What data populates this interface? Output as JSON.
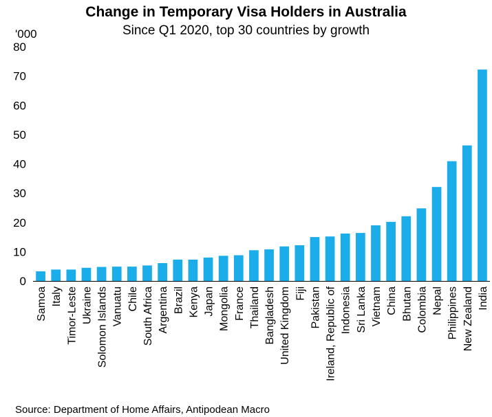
{
  "chart_data": {
    "type": "bar",
    "title": "Change in Temporary Visa Holders in Australia",
    "subtitle": "Since Q1 2020, top 30 countries by growth",
    "unit_label": "'000",
    "source": "Source: Department of Home Affairs, Antipodean Macro",
    "categories": [
      "Samoa",
      "Italy",
      "Timor-Leste",
      "Ukraine",
      "Solomon Islands",
      "Vanuatu",
      "Chile",
      "South Africa",
      "Argentina",
      "Brazil",
      "Kenya",
      "Japan",
      "Mongolia",
      "France",
      "Thailand",
      "Bangladesh",
      "United Kingdom",
      "Fiji",
      "Pakistan",
      "Ireland, Republic of",
      "Indonesia",
      "Sri Lanka",
      "Vietnam",
      "China",
      "Bhutan",
      "Colombia",
      "Nepal",
      "Philippines",
      "New Zealand",
      "India"
    ],
    "values": [
      3.3,
      3.9,
      3.9,
      4.5,
      4.8,
      4.9,
      4.9,
      5.3,
      6.1,
      7.3,
      7.3,
      8.0,
      8.6,
      8.8,
      10.5,
      10.8,
      11.8,
      12.2,
      15.0,
      15.2,
      16.2,
      16.4,
      19.0,
      20.2,
      22.1,
      24.8,
      32.1,
      40.9,
      46.3,
      72.2
    ],
    "ylim": [
      0,
      80
    ],
    "yticks": [
      0,
      10,
      20,
      30,
      40,
      50,
      60,
      70,
      80
    ],
    "grid": false,
    "bar_color": "#1BADEA"
  }
}
